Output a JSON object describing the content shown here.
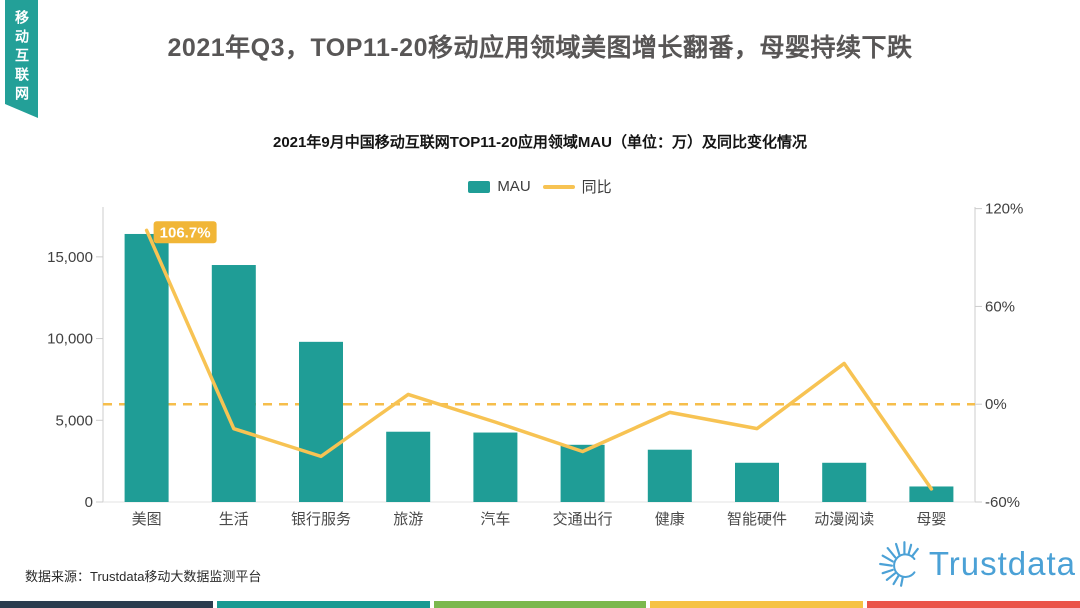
{
  "ribbon": {
    "text": "移动互联网",
    "color": "#23A098"
  },
  "title": "2021年Q3，TOP11-20移动应用领域美图增长翻番，母婴持续下跌",
  "source": "数据来源：Trustdata移动大数据监测平台",
  "logo": {
    "text": "Trustdata",
    "color": "#4BA1D6"
  },
  "footer_colors": [
    "#2B3C4E",
    "#189A92",
    "#7BB84D",
    "#F6C244",
    "#EA544A"
  ],
  "chart_data": {
    "type": "bar",
    "title": "2021年9月中国移动互联网TOP11-20应用领域MAU（单位：万）及同比变化情况",
    "categories": [
      "美图",
      "生活",
      "银行服务",
      "旅游",
      "汽车",
      "交通出行",
      "健康",
      "智能硬件",
      "动漫阅读",
      "母婴"
    ],
    "series": [
      {
        "name": "MAU",
        "type": "bar",
        "axis": "left",
        "color": "#1F9D96",
        "values": [
          16400,
          14500,
          9800,
          4300,
          4250,
          3500,
          3200,
          2400,
          2400,
          950
        ]
      },
      {
        "name": "同比",
        "type": "line",
        "axis": "right",
        "color": "#F7C353",
        "values": [
          106.7,
          -15,
          -32,
          6,
          -11,
          -29,
          -5,
          -15,
          25,
          -52
        ]
      }
    ],
    "annotation": {
      "text": "106.7%",
      "series_index": 1,
      "point_index": 0,
      "box_color": "#F1B637",
      "text_color": "#ffffff"
    },
    "left_axis": {
      "ticks": [
        0,
        5000,
        10000,
        15000
      ],
      "max": 18050,
      "label_color": "#404040"
    },
    "right_axis": {
      "ticks": [
        -60,
        0,
        60,
        120
      ],
      "min": -60,
      "max": 121,
      "unit": "%",
      "label_color": "#404040"
    },
    "zero_line": {
      "value": 0,
      "axis": "right",
      "style": "dashed",
      "color": "#F6BE4B"
    },
    "axis_line_color": "#cccccc",
    "legend_position": "top-center",
    "grid": false
  }
}
